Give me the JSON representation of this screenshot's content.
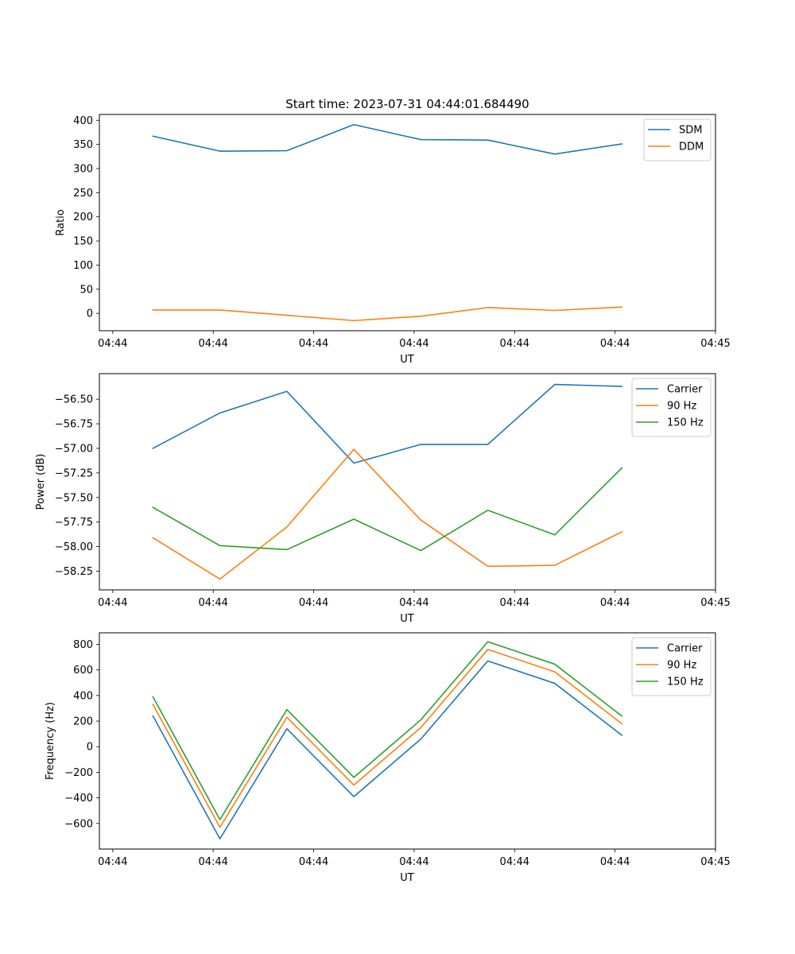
{
  "figure": {
    "title": "Start time: 2023-07-31 04:44:01.684490"
  },
  "chart_data": [
    {
      "type": "line",
      "xlabel": "UT",
      "ylabel": "Ratio",
      "x": [
        1,
        2,
        3,
        4,
        5,
        6,
        7,
        8
      ],
      "xlim": [
        0.2,
        9.4
      ],
      "xticks": [
        0.4,
        1.9,
        3.4,
        4.9,
        6.4,
        7.9,
        9.4
      ],
      "xtick_labels": [
        "04:44",
        "04:44",
        "04:44",
        "04:44",
        "04:44",
        "04:44",
        "04:45"
      ],
      "ylim": [
        -36,
        412
      ],
      "yticks": [
        0,
        50,
        100,
        150,
        200,
        250,
        300,
        350,
        400
      ],
      "ytick_labels": [
        "0",
        "50",
        "100",
        "150",
        "200",
        "250",
        "300",
        "350",
        "400"
      ],
      "legend_location": "upper right",
      "series": [
        {
          "name": "SDM",
          "color": "#1f77b4",
          "values": [
            367,
            336,
            337,
            391,
            360,
            359,
            330,
            351
          ]
        },
        {
          "name": "DDM",
          "color": "#ff7f0e",
          "values": [
            7,
            7,
            -4,
            -15,
            -6,
            12,
            6,
            13
          ]
        }
      ]
    },
    {
      "type": "line",
      "xlabel": "UT",
      "ylabel": "Power (dB)",
      "x": [
        1,
        2,
        3,
        4,
        5,
        6,
        7,
        8
      ],
      "xlim": [
        0.2,
        9.4
      ],
      "xticks": [
        0.4,
        1.9,
        3.4,
        4.9,
        6.4,
        7.9,
        9.4
      ],
      "xtick_labels": [
        "04:44",
        "04:44",
        "04:44",
        "04:44",
        "04:44",
        "04:44",
        "04:45"
      ],
      "ylim": [
        -58.44,
        -56.24
      ],
      "yticks": [
        -58.25,
        -58.0,
        -57.75,
        -57.5,
        -57.25,
        -57.0,
        -56.75,
        -56.5
      ],
      "ytick_labels": [
        "−58.25",
        "−58.00",
        "−57.75",
        "−57.50",
        "−57.25",
        "−57.00",
        "−56.75",
        "−56.50"
      ],
      "legend_location": "upper right",
      "series": [
        {
          "name": "Carrier",
          "color": "#1f77b4",
          "values": [
            -57.0,
            -56.64,
            -56.42,
            -57.15,
            -56.96,
            -56.96,
            -56.35,
            -56.37
          ]
        },
        {
          "name": "90 Hz",
          "color": "#ff7f0e",
          "values": [
            -57.91,
            -58.33,
            -57.8,
            -57.01,
            -57.73,
            -58.2,
            -58.19,
            -57.85
          ]
        },
        {
          "name": "150 Hz",
          "color": "#2ca02c",
          "values": [
            -57.6,
            -57.99,
            -58.03,
            -57.72,
            -58.04,
            -57.63,
            -57.88,
            -57.2
          ]
        }
      ]
    },
    {
      "type": "line",
      "xlabel": "UT",
      "ylabel": "Frequency (Hz)",
      "x": [
        1,
        2,
        3,
        4,
        5,
        6,
        7,
        8
      ],
      "xlim": [
        0.2,
        9.4
      ],
      "xticks": [
        0.4,
        1.9,
        3.4,
        4.9,
        6.4,
        7.9,
        9.4
      ],
      "xtick_labels": [
        "04:44",
        "04:44",
        "04:44",
        "04:44",
        "04:44",
        "04:44",
        "04:45"
      ],
      "ylim": [
        -800,
        890
      ],
      "yticks": [
        -600,
        -400,
        -200,
        0,
        200,
        400,
        600,
        800
      ],
      "ytick_labels": [
        "−600",
        "−400",
        "−200",
        "0",
        "200",
        "400",
        "600",
        "800"
      ],
      "legend_location": "upper right",
      "series": [
        {
          "name": "Carrier",
          "color": "#1f77b4",
          "values": [
            240,
            -720,
            140,
            -390,
            60,
            670,
            495,
            90
          ]
        },
        {
          "name": "90 Hz",
          "color": "#ff7f0e",
          "values": [
            330,
            -630,
            230,
            -300,
            150,
            760,
            585,
            180
          ]
        },
        {
          "name": "150 Hz",
          "color": "#2ca02c",
          "values": [
            390,
            -570,
            290,
            -240,
            210,
            820,
            645,
            240
          ]
        }
      ]
    }
  ]
}
